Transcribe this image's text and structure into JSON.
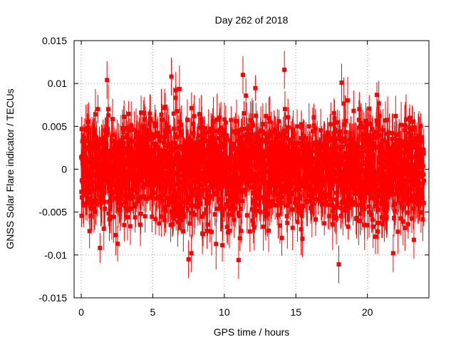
{
  "chart_data": {
    "type": "scatter",
    "title": "Day 262 of 2018",
    "xlabel": "GPS time / hours",
    "ylabel": "GNSS Solar Flare indicator / TECUs",
    "xlim": [
      -0.5,
      24.3
    ],
    "ylim": [
      -0.015,
      0.015
    ],
    "grid": true,
    "legend": "none",
    "xticks": [
      {
        "value": 0,
        "label": "0"
      },
      {
        "value": 5,
        "label": "5"
      },
      {
        "value": 10,
        "label": "10"
      },
      {
        "value": 15,
        "label": "15"
      },
      {
        "value": 20,
        "label": "20"
      }
    ],
    "yticks": [
      {
        "value": -0.015,
        "label": "-0.015"
      },
      {
        "value": -0.01,
        "label": "-0.01"
      },
      {
        "value": -0.005,
        "label": "-0.005"
      },
      {
        "value": 0,
        "label": "0"
      },
      {
        "value": 0.005,
        "label": "0.005"
      },
      {
        "value": 0.01,
        "label": "0.01"
      },
      {
        "value": 0.015,
        "label": "0.015"
      }
    ],
    "series": [
      {
        "name": "GNSS Solar Flare indicator",
        "color": "#ff0000",
        "marker": "square",
        "error_bars": true,
        "x_start": 0.0,
        "x_end": 23.95,
        "n_points": 2400,
        "noise_std": 0.003,
        "error_half_width": 0.0022,
        "highlighted_points": [
          {
            "x": 1.8,
            "y": 0.0104
          },
          {
            "x": 6.3,
            "y": 0.0108
          },
          {
            "x": 7.5,
            "y": -0.0105
          },
          {
            "x": 7.7,
            "y": -0.0098
          },
          {
            "x": 11.3,
            "y": 0.011
          },
          {
            "x": 11.0,
            "y": -0.0106
          },
          {
            "x": 14.2,
            "y": 0.0116
          },
          {
            "x": 18.2,
            "y": 0.0101
          },
          {
            "x": 18.0,
            "y": -0.0111
          },
          {
            "x": 21.8,
            "y": -0.0098
          }
        ]
      }
    ]
  }
}
